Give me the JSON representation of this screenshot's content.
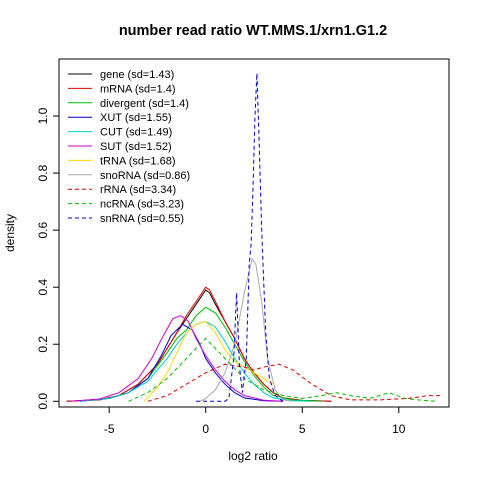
{
  "chart_data": {
    "type": "line",
    "title": "number read ratio WT.MMS.1/xrn1.G1.2",
    "xlabel": "log2 ratio",
    "ylabel": "density",
    "xlim": [
      -7.6,
      12.6
    ],
    "ylim": [
      -0.02,
      1.2
    ],
    "x_ticks": [
      -5,
      0,
      5,
      10
    ],
    "x_tick_labels": [
      "-5",
      "0",
      "5",
      "10"
    ],
    "y_ticks": [
      0.0,
      0.2,
      0.4,
      0.6,
      0.8,
      1.0
    ],
    "y_tick_labels": [
      "0.0",
      "0.2",
      "0.4",
      "0.6",
      "0.8",
      "1.0"
    ],
    "grid": false,
    "legend_position": "top-left",
    "series": [
      {
        "name": "gene (sd=1.43)",
        "color": "#000000",
        "style": "solid",
        "points": [
          [
            -7.2,
            0
          ],
          [
            -5.5,
            0.005
          ],
          [
            -4.5,
            0.02
          ],
          [
            -3.5,
            0.06
          ],
          [
            -2.5,
            0.13
          ],
          [
            -1.5,
            0.24
          ],
          [
            -1,
            0.29
          ],
          [
            -0.5,
            0.34
          ],
          [
            0,
            0.39
          ],
          [
            0.2,
            0.38
          ],
          [
            0.5,
            0.34
          ],
          [
            1,
            0.28
          ],
          [
            1.5,
            0.22
          ],
          [
            2,
            0.15
          ],
          [
            2.5,
            0.1
          ],
          [
            3,
            0.06
          ],
          [
            3.5,
            0.03
          ],
          [
            4,
            0.012
          ],
          [
            5,
            0.003
          ],
          [
            6.5,
            0
          ]
        ]
      },
      {
        "name": "mRNA (sd=1.4)",
        "color": "#dd0000",
        "style": "solid",
        "points": [
          [
            -7.2,
            0
          ],
          [
            -5.5,
            0.005
          ],
          [
            -4.5,
            0.02
          ],
          [
            -3.5,
            0.06
          ],
          [
            -2.5,
            0.13
          ],
          [
            -1.5,
            0.24
          ],
          [
            -1,
            0.3
          ],
          [
            -0.5,
            0.35
          ],
          [
            0,
            0.4
          ],
          [
            0.2,
            0.39
          ],
          [
            0.5,
            0.35
          ],
          [
            1,
            0.28
          ],
          [
            1.5,
            0.22
          ],
          [
            2,
            0.15
          ],
          [
            2.5,
            0.1
          ],
          [
            3,
            0.06
          ],
          [
            3.5,
            0.03
          ],
          [
            4,
            0.012
          ],
          [
            5,
            0.003
          ],
          [
            6.5,
            0
          ]
        ]
      },
      {
        "name": "divergent (sd=1.4)",
        "color": "#00bb00",
        "style": "solid",
        "points": [
          [
            -6.5,
            0
          ],
          [
            -5,
            0.01
          ],
          [
            -4,
            0.03
          ],
          [
            -3,
            0.08
          ],
          [
            -2,
            0.17
          ],
          [
            -1.5,
            0.22
          ],
          [
            -1,
            0.25
          ],
          [
            -0.5,
            0.3
          ],
          [
            0,
            0.33
          ],
          [
            0.5,
            0.31
          ],
          [
            1,
            0.26
          ],
          [
            1.5,
            0.2
          ],
          [
            2,
            0.14
          ],
          [
            2.5,
            0.09
          ],
          [
            3,
            0.05
          ],
          [
            3.5,
            0.02
          ],
          [
            4.5,
            0.005
          ],
          [
            6,
            0
          ]
        ]
      },
      {
        "name": "XUT (sd=1.55)",
        "color": "#0000cc",
        "style": "solid",
        "points": [
          [
            -6.5,
            0
          ],
          [
            -5,
            0.01
          ],
          [
            -4,
            0.03
          ],
          [
            -3,
            0.08
          ],
          [
            -2.3,
            0.16
          ],
          [
            -1.8,
            0.23
          ],
          [
            -1.2,
            0.27
          ],
          [
            -0.7,
            0.25
          ],
          [
            -0.3,
            0.2
          ],
          [
            0,
            0.15
          ],
          [
            0.5,
            0.1
          ],
          [
            1,
            0.06
          ],
          [
            1.5,
            0.03
          ],
          [
            2,
            0.012
          ],
          [
            3,
            0.002
          ],
          [
            4,
            0
          ]
        ]
      },
      {
        "name": "CUT (sd=1.49)",
        "color": "#00cccc",
        "style": "solid",
        "points": [
          [
            -6.5,
            0
          ],
          [
            -5,
            0.01
          ],
          [
            -4,
            0.03
          ],
          [
            -3,
            0.07
          ],
          [
            -2,
            0.15
          ],
          [
            -1.5,
            0.2
          ],
          [
            -1,
            0.24
          ],
          [
            -0.5,
            0.27
          ],
          [
            0,
            0.28
          ],
          [
            0.5,
            0.26
          ],
          [
            1,
            0.21
          ],
          [
            1.5,
            0.15
          ],
          [
            2,
            0.1
          ],
          [
            2.5,
            0.06
          ],
          [
            3,
            0.03
          ],
          [
            3.5,
            0.012
          ],
          [
            4.5,
            0.002
          ],
          [
            5.5,
            0
          ]
        ]
      },
      {
        "name": "SUT (sd=1.52)",
        "color": "#cc00cc",
        "style": "solid",
        "points": [
          [
            -7,
            0
          ],
          [
            -5.5,
            0.008
          ],
          [
            -4.5,
            0.03
          ],
          [
            -3.5,
            0.08
          ],
          [
            -2.8,
            0.15
          ],
          [
            -2.2,
            0.23
          ],
          [
            -1.7,
            0.29
          ],
          [
            -1.3,
            0.3
          ],
          [
            -0.9,
            0.28
          ],
          [
            -0.5,
            0.22
          ],
          [
            0,
            0.16
          ],
          [
            0.5,
            0.11
          ],
          [
            1,
            0.07
          ],
          [
            1.5,
            0.04
          ],
          [
            2,
            0.02
          ],
          [
            3,
            0.004
          ],
          [
            4,
            0
          ]
        ]
      },
      {
        "name": "tRNA (sd=1.68)",
        "color": "#ffd700",
        "style": "solid",
        "points": [
          [
            -3.2,
            0
          ],
          [
            -2.5,
            0.05
          ],
          [
            -2,
            0.1
          ],
          [
            -1.5,
            0.17
          ],
          [
            -1,
            0.24
          ],
          [
            -0.5,
            0.27
          ],
          [
            0,
            0.28
          ],
          [
            0.5,
            0.24
          ],
          [
            1,
            0.18
          ],
          [
            1.5,
            0.14
          ],
          [
            2,
            0.12
          ],
          [
            2.5,
            0.1
          ],
          [
            3,
            0.08
          ],
          [
            3.5,
            0.06
          ]
        ]
      },
      {
        "name": "snoRNA (sd=0.86)",
        "color": "#aaaaaa",
        "style": "solid",
        "points": [
          [
            -0.3,
            0
          ],
          [
            0,
            0.01
          ],
          [
            0.5,
            0.04
          ],
          [
            1,
            0.1
          ],
          [
            1.5,
            0.2
          ],
          [
            2,
            0.38
          ],
          [
            2.4,
            0.5
          ],
          [
            2.6,
            0.48
          ],
          [
            2.9,
            0.35
          ],
          [
            3.2,
            0.15
          ],
          [
            3.6,
            0.04
          ],
          [
            4,
            0.005
          ],
          [
            4.5,
            0
          ]
        ]
      },
      {
        "name": "rRNA (sd=3.34)",
        "color": "#dd0000",
        "style": "dashed",
        "points": [
          [
            -3,
            0
          ],
          [
            -2,
            0.02
          ],
          [
            -1,
            0.06
          ],
          [
            0,
            0.1
          ],
          [
            1,
            0.13
          ],
          [
            2,
            0.12
          ],
          [
            2.5,
            0.11
          ],
          [
            3,
            0.12
          ],
          [
            3.8,
            0.13
          ],
          [
            4.5,
            0.11
          ],
          [
            5.5,
            0.06
          ],
          [
            6.5,
            0.02
          ],
          [
            7.5,
            0.005
          ],
          [
            9,
            0.005
          ],
          [
            10.5,
            0.01
          ],
          [
            11.5,
            0.02
          ],
          [
            12.2,
            0.02
          ]
        ]
      },
      {
        "name": "ncRNA (sd=3.23)",
        "color": "#00bb00",
        "style": "dashed",
        "points": [
          [
            -4,
            0
          ],
          [
            -3,
            0.03
          ],
          [
            -2,
            0.08
          ],
          [
            -1,
            0.15
          ],
          [
            0,
            0.22
          ],
          [
            1,
            0.15
          ],
          [
            2,
            0.08
          ],
          [
            3,
            0.04
          ],
          [
            4,
            0.02
          ],
          [
            5,
            0.01
          ],
          [
            6,
            0.02
          ],
          [
            6.8,
            0.03
          ],
          [
            7.5,
            0.02
          ],
          [
            8.5,
            0.01
          ],
          [
            9.5,
            0.03
          ],
          [
            10.3,
            0.01
          ],
          [
            11,
            0.005
          ],
          [
            12,
            0
          ]
        ]
      },
      {
        "name": "snRNA (sd=0.55)",
        "color": "#0000cc",
        "style": "dashed",
        "points": [
          [
            -0.5,
            0
          ],
          [
            1,
            0
          ],
          [
            1.2,
            0.01
          ],
          [
            1.45,
            0.15
          ],
          [
            1.6,
            0.38
          ],
          [
            1.75,
            0.12
          ],
          [
            1.9,
            0.03
          ],
          [
            2.1,
            0.15
          ],
          [
            2.25,
            0.48
          ],
          [
            2.35,
            0.55
          ],
          [
            2.45,
            0.75
          ],
          [
            2.55,
            1.0
          ],
          [
            2.65,
            1.15
          ],
          [
            2.75,
            0.95
          ],
          [
            2.9,
            0.6
          ],
          [
            3.1,
            0.25
          ],
          [
            3.3,
            0.08
          ],
          [
            3.6,
            0.02
          ],
          [
            4,
            0
          ]
        ]
      }
    ]
  }
}
